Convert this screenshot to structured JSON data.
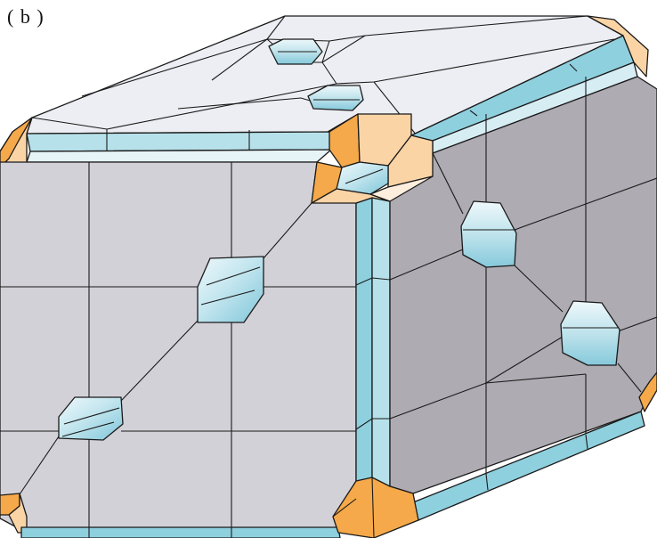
{
  "figure": {
    "panel_label": "( b )"
  },
  "colors": {
    "front_face": "#d3d1d8",
    "right_face": "#aeabb2",
    "top_face": "#ecedf2",
    "edge_strip": "#8fd0df",
    "edge_strip_light": "#b8e2eb",
    "corner_dark": "#f5a94a",
    "corner_light": "#fbd4a6",
    "pore_light": "#e6f4f8",
    "pore_mid": "#98d2e2",
    "line": "#1a1a1a"
  }
}
